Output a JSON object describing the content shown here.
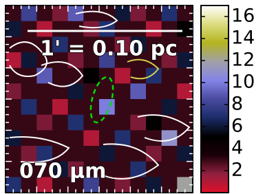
{
  "chart_data": {
    "type": "heatmap",
    "annotations": [
      "1' = 0.10 pc",
      "070 μm"
    ],
    "zlim": [
      0,
      17
    ],
    "zticks": [
      2,
      4,
      6,
      8,
      10,
      12,
      14,
      16
    ],
    "colormap": [
      "#e0102a",
      "#902040",
      "#1a0008",
      "#000000",
      "#1c2c68",
      "#4a4aa0",
      "#8484e8",
      "#a0a0a8",
      "#b4b420",
      "#dcdc80",
      "#ffffff"
    ],
    "values": [
      [
        3,
        8,
        3,
        2,
        9,
        3,
        3,
        6,
        2,
        3,
        7,
        3
      ],
      [
        6,
        3,
        1,
        3,
        3,
        2,
        7,
        3,
        3,
        1,
        3,
        5
      ],
      [
        3,
        3,
        3,
        7,
        3,
        3,
        3,
        2,
        6,
        3,
        3,
        3
      ],
      [
        1,
        6,
        3,
        3,
        2,
        3,
        8,
        3,
        3,
        3,
        2,
        6
      ],
      [
        3,
        3,
        9,
        3,
        3,
        5,
        3,
        1,
        3,
        7,
        3,
        3
      ],
      [
        2,
        3,
        3,
        3,
        6,
        3,
        3,
        3,
        9,
        3,
        3,
        1
      ],
      [
        3,
        7,
        3,
        1,
        3,
        3,
        10,
        3,
        3,
        3,
        6,
        3
      ],
      [
        3,
        3,
        2,
        3,
        7,
        3,
        3,
        3,
        2,
        5,
        3,
        3
      ],
      [
        6,
        3,
        3,
        3,
        3,
        1,
        3,
        7,
        3,
        3,
        11,
        3
      ],
      [
        3,
        2,
        7,
        3,
        3,
        3,
        6,
        3,
        3,
        2,
        3,
        6
      ],
      [
        3,
        3,
        3,
        6,
        2,
        3,
        3,
        3,
        7,
        3,
        3,
        3
      ],
      [
        7,
        3,
        1,
        3,
        3,
        8,
        3,
        2,
        3,
        6,
        3,
        12
      ]
    ]
  }
}
